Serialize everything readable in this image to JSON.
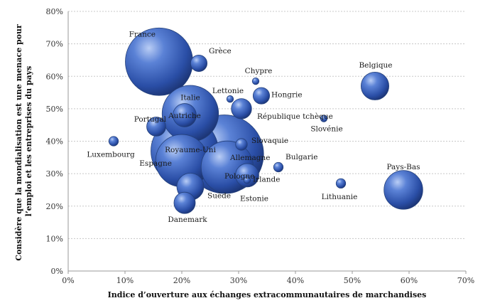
{
  "chart_data": {
    "type": "scatter",
    "variant": "bubble",
    "xlabel": "Indice d’ouverture aux échanges extracommunautaires de marchandises",
    "ylabel_lines": [
      "Considère que la mondialisation est une menace pour",
      "l’emploi et les entreprises du pays"
    ],
    "xlim": [
      0,
      70
    ],
    "ylim": [
      0,
      80
    ],
    "x_ticks": [
      0,
      10,
      20,
      30,
      40,
      50,
      60,
      70
    ],
    "y_ticks": [
      0,
      10,
      20,
      30,
      40,
      50,
      60,
      70,
      80
    ],
    "x_tick_labels": [
      "0%",
      "10%",
      "20%",
      "30%",
      "40%",
      "50%",
      "60%",
      "70%"
    ],
    "y_tick_labels": [
      "0%",
      "10%",
      "20%",
      "30%",
      "40%",
      "50%",
      "60%",
      "70%",
      "80%"
    ],
    "grid": "horizontal",
    "bubble_color": "#2f56b0",
    "points": [
      {
        "label": "France",
        "x": 16,
        "y": 64.5,
        "size": 100
      },
      {
        "label": "Grèce",
        "x": 23,
        "y": 64,
        "size": 6
      },
      {
        "label": "Chypre",
        "x": 33,
        "y": 58.5,
        "size": 1
      },
      {
        "label": "Belgique",
        "x": 54,
        "y": 57,
        "size": 17
      },
      {
        "label": "Lettonie",
        "x": 28.5,
        "y": 53,
        "size": 1
      },
      {
        "label": "Hongrie",
        "x": 34,
        "y": 54,
        "size": 6
      },
      {
        "label": "République tchèque",
        "x": 30.5,
        "y": 50,
        "size": 9
      },
      {
        "label": "Italie",
        "x": 21.5,
        "y": 48.5,
        "size": 70
      },
      {
        "label": "Autriche",
        "x": 20.5,
        "y": 48,
        "size": 12
      },
      {
        "label": "Portugal",
        "x": 15.5,
        "y": 44.5,
        "size": 8
      },
      {
        "label": "Slovénie",
        "x": 45,
        "y": 47,
        "size": 1
      },
      {
        "label": "Luxembourg",
        "x": 8,
        "y": 40,
        "size": 2
      },
      {
        "label": "Slovaquie",
        "x": 30.5,
        "y": 39,
        "size": 3
      },
      {
        "label": "Allemagne",
        "x": 27.5,
        "y": 36,
        "size": 135
      },
      {
        "label": "Royaume-Uni",
        "x": 20.5,
        "y": 37,
        "size": 100
      },
      {
        "label": "Espagne",
        "x": 20,
        "y": 34,
        "size": 60
      },
      {
        "label": "Pologne",
        "x": 28,
        "y": 32,
        "size": 60
      },
      {
        "label": "Bulgarie",
        "x": 37,
        "y": 32,
        "size": 2
      },
      {
        "label": "Irlande",
        "x": 31.5,
        "y": 29.5,
        "size": 12
      },
      {
        "label": "Estonie",
        "x": 31.5,
        "y": 28,
        "size": 1
      },
      {
        "label": "Lithuanie",
        "x": 48,
        "y": 27,
        "size": 2
      },
      {
        "label": "Pays-Bas",
        "x": 59,
        "y": 25,
        "size": 33
      },
      {
        "label": "Suède",
        "x": 21.5,
        "y": 26,
        "size": 16
      },
      {
        "label": "Danemark",
        "x": 20.5,
        "y": 21,
        "size": 10
      }
    ]
  }
}
